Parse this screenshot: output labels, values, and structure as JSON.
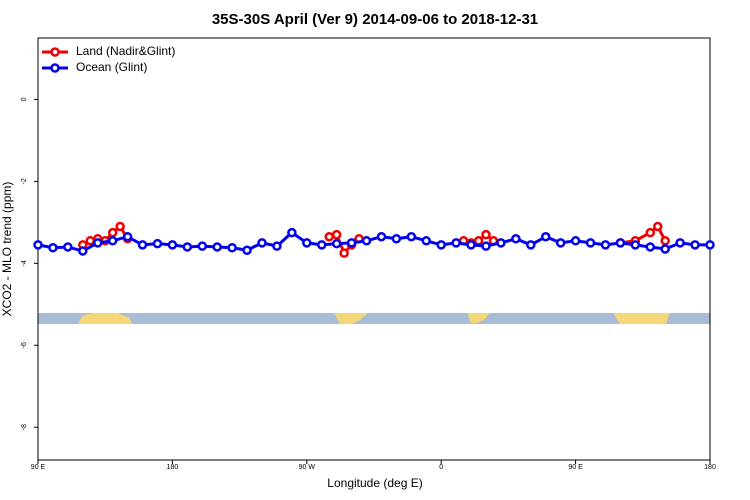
{
  "chart_data": {
    "type": "line",
    "title": "35S-30S April (Ver 9)   2014-09-06 to 2018-12-31",
    "x_label": "Longitude (deg E)",
    "y_label": "XCO2 - MLO trend (ppm)",
    "xlim": [
      90,
      540
    ],
    "xticks": [
      {
        "value": 90,
        "label": "90 E"
      },
      180,
      {
        "value": 270,
        "label": "90 W"
      },
      {
        "value": 360,
        "label": "0"
      },
      {
        "value": 450,
        "label": "90 E"
      },
      {
        "value": 540,
        "label": "180"
      }
    ],
    "ylim": [
      -8.8,
      1.5
    ],
    "yticks": [
      0,
      -2,
      -4,
      -6,
      -8
    ],
    "legend": "top-left",
    "series": [
      {
        "name": "Land (Nadir&Glint)",
        "color": "#ee0000",
        "x": [
          120,
          125,
          130,
          135,
          140,
          145,
          150,
          null,
          285,
          290,
          295,
          300,
          305,
          null,
          375,
          380,
          385,
          390,
          395,
          null,
          480,
          490,
          500,
          505,
          510
        ],
        "values": [
          -3.55,
          -3.45,
          -3.4,
          -3.45,
          -3.25,
          -3.1,
          -3.4,
          null,
          -3.35,
          -3.3,
          -3.75,
          -3.55,
          -3.4,
          null,
          -3.45,
          -3.5,
          -3.45,
          -3.3,
          -3.45,
          null,
          -3.5,
          -3.45,
          -3.25,
          -3.1,
          -3.45
        ]
      },
      {
        "name": "Ocean (Glint)",
        "color": "#0000ee",
        "x": [
          90,
          100,
          110,
          120,
          130,
          140,
          150,
          160,
          170,
          180,
          190,
          200,
          210,
          220,
          230,
          240,
          250,
          260,
          270,
          280,
          290,
          300,
          310,
          320,
          330,
          340,
          350,
          360,
          370,
          380,
          390,
          400,
          410,
          420,
          430,
          440,
          450,
          460,
          470,
          480,
          490,
          500,
          510,
          520,
          530,
          540
        ],
        "values": [
          -3.55,
          -3.62,
          -3.6,
          -3.7,
          -3.5,
          -3.45,
          -3.35,
          -3.55,
          -3.52,
          -3.55,
          -3.6,
          -3.58,
          -3.6,
          -3.62,
          -3.68,
          -3.5,
          -3.58,
          -3.25,
          -3.5,
          -3.55,
          -3.52,
          -3.5,
          -3.45,
          -3.35,
          -3.4,
          -3.35,
          -3.45,
          -3.55,
          -3.5,
          -3.55,
          -3.58,
          -3.5,
          -3.4,
          -3.55,
          -3.35,
          -3.5,
          -3.45,
          -3.5,
          -3.55,
          -3.5,
          -3.55,
          -3.6,
          -3.65,
          -3.5,
          -3.55,
          -3.55
        ]
      }
    ]
  }
}
